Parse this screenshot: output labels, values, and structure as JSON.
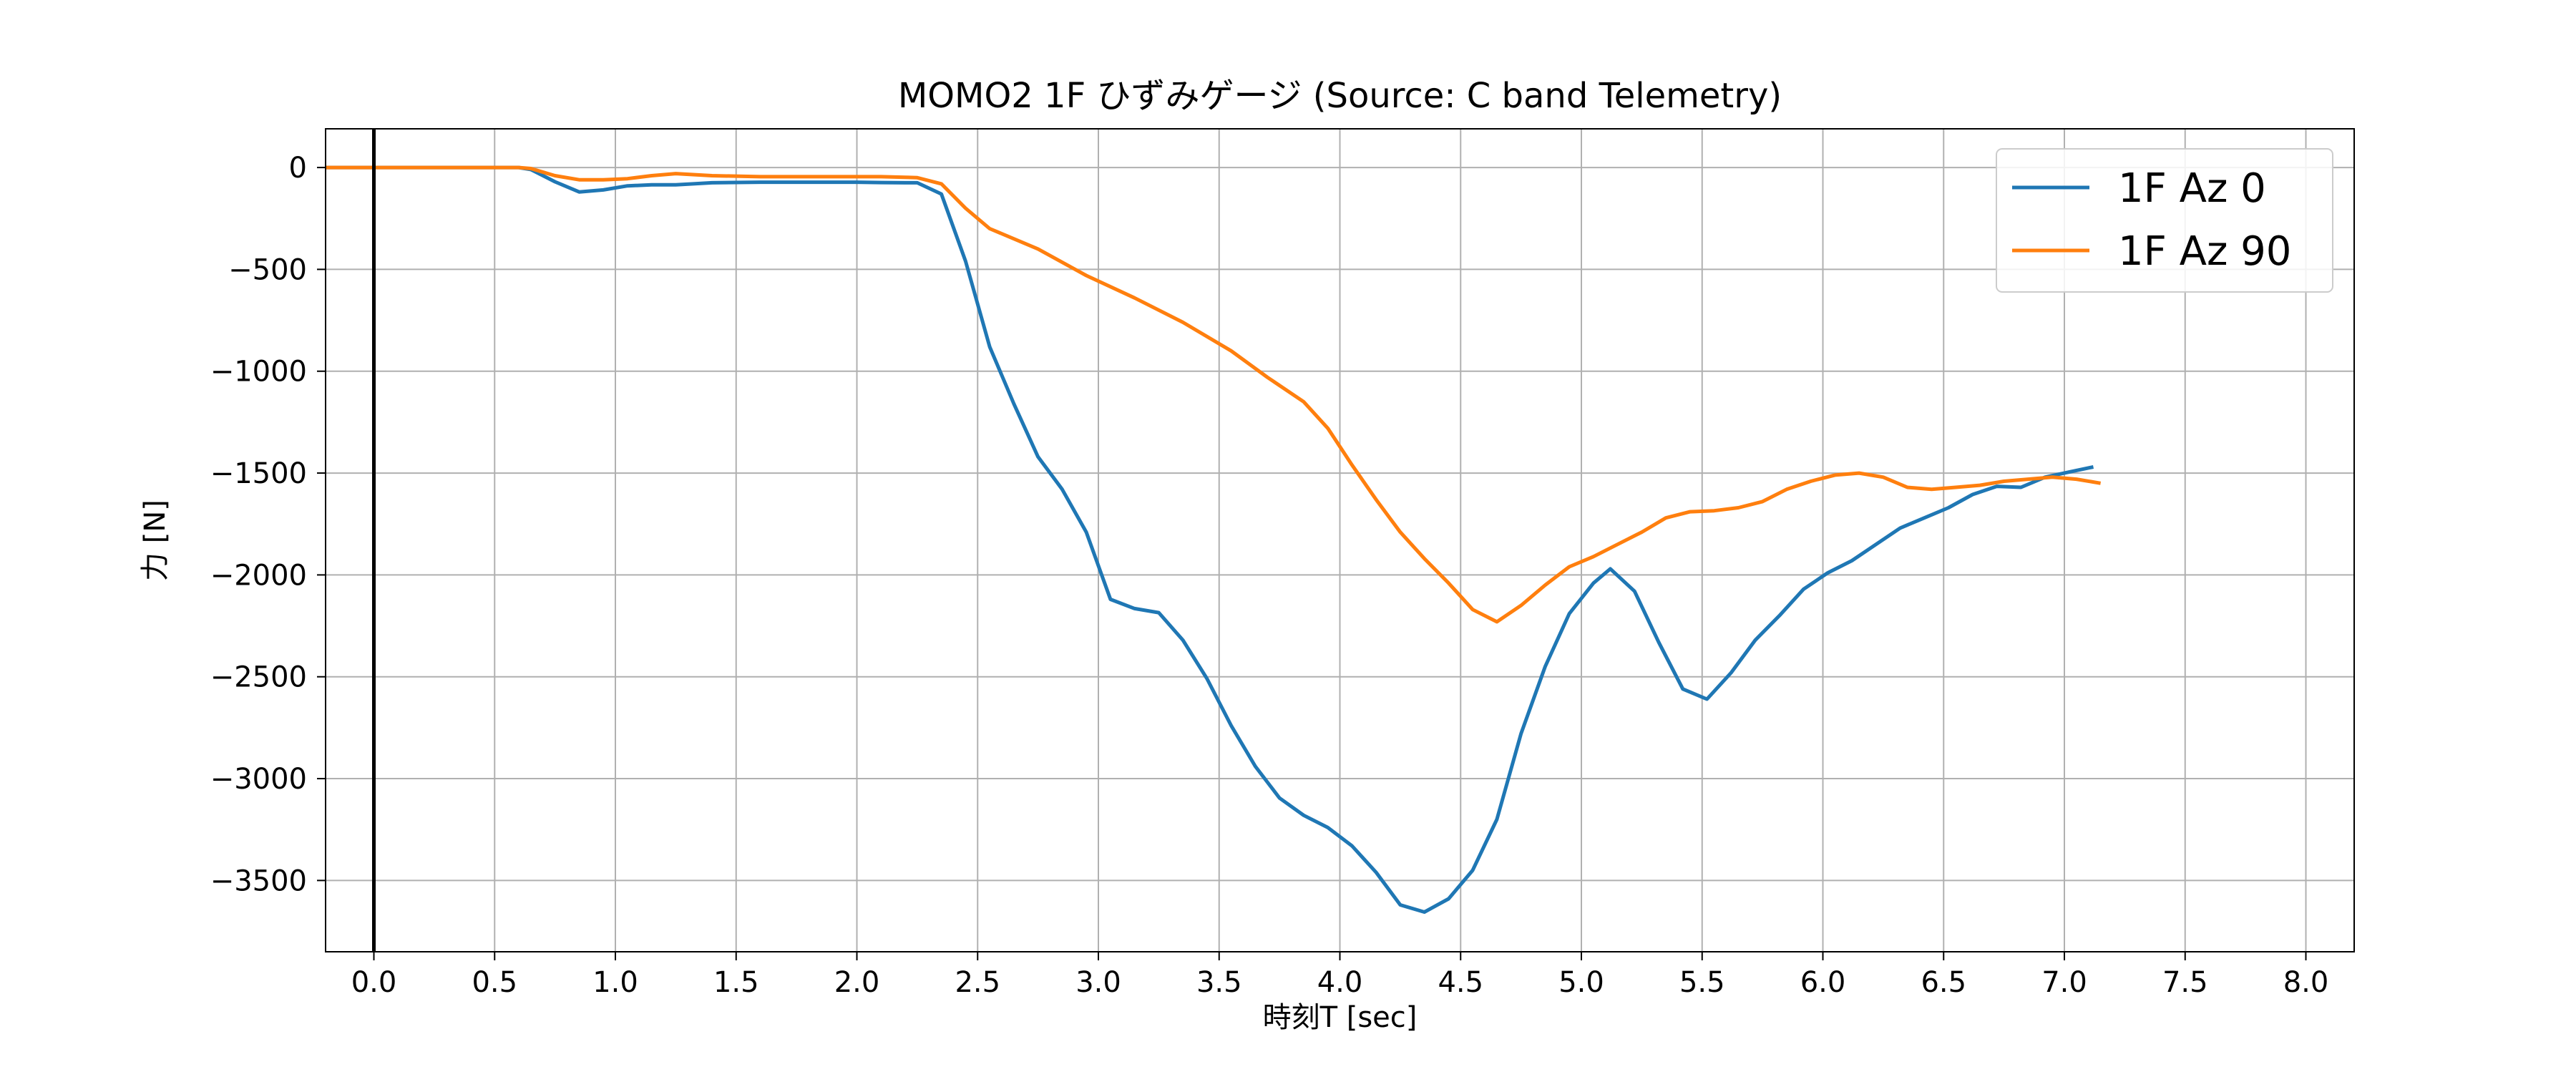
{
  "chart_data": {
    "type": "line",
    "title": "MOMO2 1F ひずみゲージ (Source: C band Telemetry)",
    "xlabel": "時刻T [sec]",
    "ylabel": "力 [N]",
    "xlim": [
      -0.2,
      8.2
    ],
    "ylim": [
      -3850,
      190
    ],
    "xticks": [
      0.0,
      0.5,
      1.0,
      1.5,
      2.0,
      2.5,
      3.0,
      3.5,
      4.0,
      4.5,
      5.0,
      5.5,
      6.0,
      6.5,
      7.0,
      7.5,
      8.0
    ],
    "xtick_labels": [
      "0.0",
      "0.5",
      "1.0",
      "1.5",
      "2.0",
      "2.5",
      "3.0",
      "3.5",
      "4.0",
      "4.5",
      "5.0",
      "5.5",
      "6.0",
      "6.5",
      "7.0",
      "7.5",
      "8.0"
    ],
    "yticks": [
      0,
      -500,
      -1000,
      -1500,
      -2000,
      -2500,
      -3000,
      -3500
    ],
    "ytick_labels": [
      "0",
      "−500",
      "−1000",
      "−1500",
      "−2000",
      "−2500",
      "−3000",
      "−3500"
    ],
    "grid": true,
    "vline_x": 0.0,
    "legend_position": "top-right",
    "series": [
      {
        "name": "1F Az 0",
        "color": "#1f77b4",
        "x": [
          -0.2,
          0.0,
          0.2,
          0.4,
          0.6,
          0.65,
          0.75,
          0.85,
          0.95,
          1.05,
          1.15,
          1.25,
          1.4,
          1.6,
          1.8,
          2.0,
          2.1,
          2.2,
          2.25,
          2.35,
          2.45,
          2.55,
          2.65,
          2.75,
          2.85,
          2.95,
          3.05,
          3.15,
          3.25,
          3.35,
          3.45,
          3.55,
          3.65,
          3.75,
          3.85,
          3.95,
          4.05,
          4.15,
          4.25,
          4.35,
          4.45,
          4.55,
          4.65,
          4.75,
          4.85,
          4.95,
          5.05,
          5.12,
          5.22,
          5.32,
          5.42,
          5.52,
          5.62,
          5.72,
          5.82,
          5.92,
          6.02,
          6.12,
          6.22,
          6.32,
          6.42,
          6.52,
          6.62,
          6.72,
          6.82,
          6.92,
          7.02,
          7.12
        ],
        "y": [
          0,
          0,
          0,
          0,
          0,
          -10,
          -70,
          -120,
          -110,
          -90,
          -85,
          -85,
          -75,
          -72,
          -72,
          -72,
          -74,
          -75,
          -75,
          -130,
          -460,
          -880,
          -1160,
          -1420,
          -1580,
          -1790,
          -2120,
          -2165,
          -2185,
          -2320,
          -2510,
          -2740,
          -2940,
          -3095,
          -3180,
          -3240,
          -3330,
          -3460,
          -3620,
          -3655,
          -3590,
          -3450,
          -3200,
          -2780,
          -2450,
          -2190,
          -2040,
          -1970,
          -2080,
          -2330,
          -2560,
          -2610,
          -2480,
          -2320,
          -2200,
          -2070,
          -1990,
          -1930,
          -1850,
          -1770,
          -1720,
          -1670,
          -1605,
          -1565,
          -1570,
          -1520,
          -1495,
          -1470
        ]
      },
      {
        "name": "1F Az 90",
        "color": "#ff7f0e",
        "x": [
          -0.2,
          0.0,
          0.2,
          0.4,
          0.6,
          0.65,
          0.75,
          0.85,
          0.95,
          1.05,
          1.15,
          1.25,
          1.4,
          1.6,
          1.8,
          2.0,
          2.1,
          2.2,
          2.25,
          2.35,
          2.45,
          2.55,
          2.75,
          2.95,
          3.15,
          3.35,
          3.55,
          3.7,
          3.85,
          3.95,
          4.05,
          4.15,
          4.25,
          4.35,
          4.45,
          4.55,
          4.65,
          4.75,
          4.85,
          4.95,
          5.05,
          5.15,
          5.25,
          5.35,
          5.45,
          5.55,
          5.65,
          5.75,
          5.85,
          5.95,
          6.05,
          6.15,
          6.25,
          6.35,
          6.45,
          6.55,
          6.65,
          6.75,
          6.85,
          6.95,
          7.05,
          7.15
        ],
        "y": [
          0,
          0,
          0,
          0,
          0,
          -5,
          -40,
          -60,
          -60,
          -55,
          -40,
          -30,
          -40,
          -45,
          -45,
          -45,
          -45,
          -48,
          -50,
          -80,
          -200,
          -300,
          -400,
          -530,
          -640,
          -760,
          -900,
          -1030,
          -1150,
          -1280,
          -1460,
          -1630,
          -1790,
          -1920,
          -2040,
          -2170,
          -2230,
          -2150,
          -2050,
          -1960,
          -1910,
          -1850,
          -1790,
          -1720,
          -1690,
          -1685,
          -1670,
          -1640,
          -1580,
          -1540,
          -1510,
          -1500,
          -1520,
          -1570,
          -1580,
          -1570,
          -1560,
          -1540,
          -1530,
          -1520,
          -1530,
          -1550
        ]
      }
    ]
  }
}
